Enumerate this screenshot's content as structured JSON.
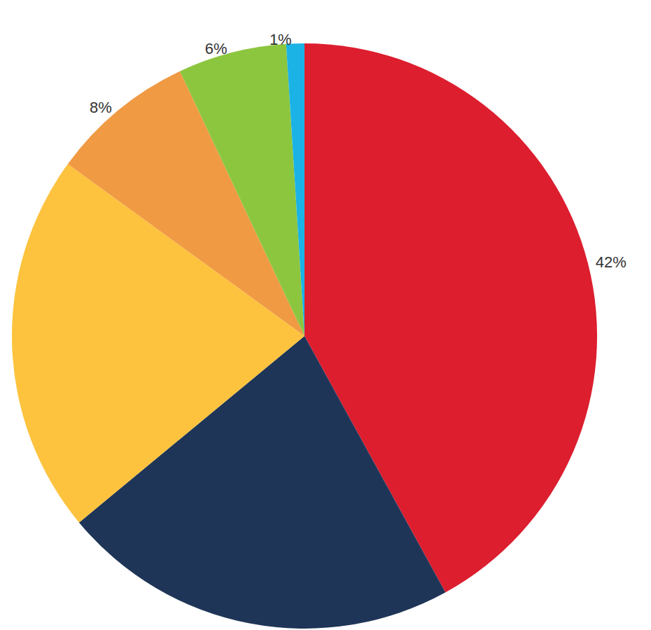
{
  "chart_data": {
    "type": "pie",
    "values": [
      42,
      22,
      21,
      8,
      6,
      1
    ],
    "value_labels": [
      "42%",
      null,
      null,
      "8%",
      "6%",
      "1%"
    ],
    "colors": [
      "#dc1e2f",
      "#1f3558",
      "#fdc33f",
      "#f09a44",
      "#8cc63f",
      "#1bb3e6"
    ],
    "data_labels": true
  }
}
